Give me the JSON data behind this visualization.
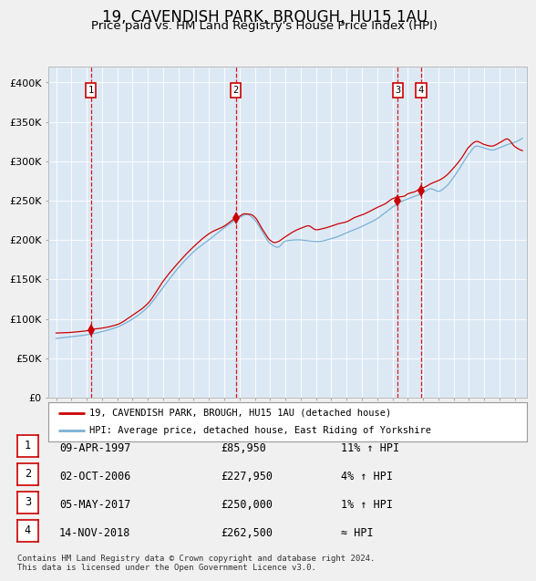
{
  "title": "19, CAVENDISH PARK, BROUGH, HU15 1AU",
  "subtitle": "Price paid vs. HM Land Registry's House Price Index (HPI)",
  "title_fontsize": 12,
  "subtitle_fontsize": 9.5,
  "background_color": "#dce9f5",
  "legend_label_red": "19, CAVENDISH PARK, BROUGH, HU15 1AU (detached house)",
  "legend_label_blue": "HPI: Average price, detached house, East Riding of Yorkshire",
  "footer": "Contains HM Land Registry data © Crown copyright and database right 2024.\nThis data is licensed under the Open Government Licence v3.0.",
  "sales": [
    {
      "num": 1,
      "date": "09-APR-1997",
      "price": 85950,
      "year": 1997.27,
      "rel": "11% ↑ HPI"
    },
    {
      "num": 2,
      "date": "02-OCT-2006",
      "price": 227950,
      "year": 2006.75,
      "rel": "4% ↑ HPI"
    },
    {
      "num": 3,
      "date": "05-MAY-2017",
      "price": 250000,
      "year": 2017.34,
      "rel": "1% ↑ HPI"
    },
    {
      "num": 4,
      "date": "14-NOV-2018",
      "price": 262500,
      "year": 2018.87,
      "rel": "≈ HPI"
    }
  ],
  "ylim": [
    0,
    420000
  ],
  "yticks": [
    0,
    50000,
    100000,
    150000,
    200000,
    250000,
    300000,
    350000,
    400000
  ],
  "ytick_labels": [
    "£0",
    "£50K",
    "£100K",
    "£150K",
    "£200K",
    "£250K",
    "£300K",
    "£350K",
    "£400K"
  ],
  "xlim_start": 1994.5,
  "xlim_end": 2025.8,
  "red_color": "#cc0000",
  "blue_color": "#7ab0d4",
  "dashed_color": "#dd0000",
  "fig_bg": "#f0f0f0"
}
